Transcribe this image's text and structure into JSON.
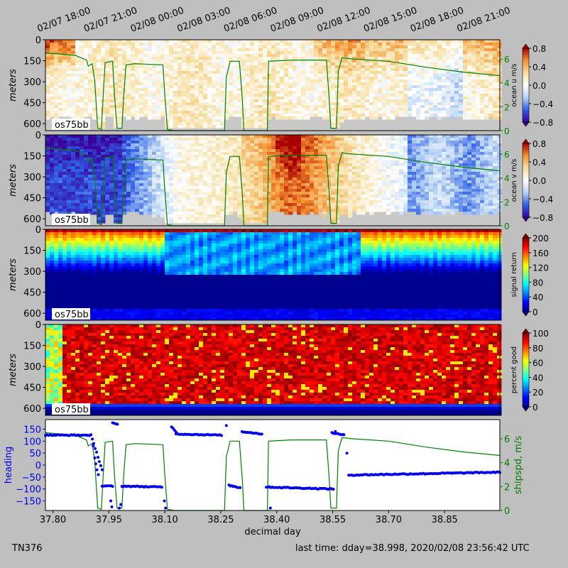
{
  "figure": {
    "bg": "#bfbfbf",
    "footer_left": "TN376",
    "footer_right": "last time: dday=38.998,  2020/02/08 23:56:42 UTC"
  },
  "top_time_ticks": [
    "02/07 18:00",
    "02/07 21:00",
    "02/08 00:00",
    "02/08 03:00",
    "02/08 06:00",
    "02/08 09:00",
    "02/08 12:00",
    "02/08 15:00",
    "02/08 18:00",
    "02/08 21:00"
  ],
  "chart_data": [
    {
      "type": "heatmap",
      "name": "ocean_u",
      "ylabel": "meters",
      "yticks": [
        "0",
        "150",
        "300",
        "450",
        "600"
      ],
      "colorbar_label": "ocean u m/s",
      "colorbar_ticks": [
        "0.8",
        "0.4",
        "0.0",
        "−0.4",
        "−0.8"
      ],
      "colormap": [
        "#3a0098",
        "#2f5fe8",
        "#b8d4f4",
        "#ffffff",
        "#f6dea0",
        "#f59030",
        "#a80000"
      ],
      "clim": [
        -0.8,
        0.8
      ],
      "label": "os75bb",
      "right_axis_ticks": [
        "6",
        "4",
        "2",
        "0"
      ]
    },
    {
      "type": "heatmap",
      "name": "ocean_v",
      "ylabel": "meters",
      "yticks": [
        "0",
        "150",
        "300",
        "450",
        "600"
      ],
      "colorbar_label": "ocean v m/s",
      "colorbar_ticks": [
        "0.8",
        "0.4",
        "0.0",
        "−0.4",
        "−0.8"
      ],
      "colormap": [
        "#3a0098",
        "#2f5fe8",
        "#b8d4f4",
        "#ffffff",
        "#f6dea0",
        "#f59030",
        "#a80000"
      ],
      "clim": [
        -0.8,
        0.8
      ],
      "label": "os75bb",
      "right_axis_ticks": [
        "6",
        "4",
        "2",
        "0"
      ]
    },
    {
      "type": "heatmap",
      "name": "signal_return",
      "ylabel": "meters",
      "yticks": [
        "0",
        "150",
        "300",
        "450",
        "600"
      ],
      "colorbar_label": "signal return",
      "colorbar_ticks": [
        "200",
        "160",
        "120",
        "80",
        "40",
        "0"
      ],
      "colormap": [
        "#00008f",
        "#0000ff",
        "#0080ff",
        "#00ffff",
        "#80ff80",
        "#ffff00",
        "#ff8000",
        "#ff0000",
        "#800000"
      ],
      "clim": [
        0,
        200
      ],
      "label": "os75bb"
    },
    {
      "type": "heatmap",
      "name": "percent_good",
      "ylabel": "meters",
      "yticks": [
        "0",
        "150",
        "300",
        "450",
        "600"
      ],
      "colorbar_label": "percent good",
      "colorbar_ticks": [
        "100",
        "80",
        "60",
        "40",
        "20",
        "0"
      ],
      "colormap": [
        "#00008f",
        "#0000ff",
        "#0080ff",
        "#00ffff",
        "#80ff80",
        "#ffff00",
        "#ff8000",
        "#ff0000",
        "#800000"
      ],
      "clim": [
        0,
        100
      ],
      "label": "os75bb"
    },
    {
      "type": "scatter",
      "name": "heading_and_speed",
      "xlabel": "decimal day",
      "xticks": [
        "37.80",
        "37.95",
        "38.10",
        "38.25",
        "38.40",
        "38.55",
        "38.70",
        "38.85"
      ],
      "xlim": [
        37.78,
        38.998
      ],
      "ylabel": "heading",
      "yticks": [
        "150",
        "100",
        "50",
        "0",
        "−50",
        "−100",
        "−150"
      ],
      "ylim": [
        -190,
        190
      ],
      "ylabel_right": "shipspd, m/s",
      "yticks_right": [
        "6",
        "4",
        "2",
        "0"
      ],
      "ylim_right": [
        0,
        7.6
      ],
      "heading_color": "#0000ee",
      "speed_color": "#008000",
      "heading_segments": [
        {
          "x0": 37.78,
          "x1": 37.902,
          "y0": 125,
          "y1": 125
        },
        {
          "x0": 37.902,
          "x1": 37.932,
          "y0": 125,
          "y1": -20
        },
        {
          "x0": 37.932,
          "x1": 37.96,
          "y0": -88,
          "y1": -88
        },
        {
          "x0": 37.96,
          "x1": 37.973,
          "y0": 175,
          "y1": 170
        },
        {
          "x0": 37.985,
          "x1": 38.092,
          "y0": -88,
          "y1": -92
        },
        {
          "x0": 38.118,
          "x1": 38.13,
          "y0": 160,
          "y1": 140
        },
        {
          "x0": 38.13,
          "x1": 38.252,
          "y0": 130,
          "y1": 125
        },
        {
          "x0": 38.272,
          "x1": 38.302,
          "y0": -85,
          "y1": -95
        },
        {
          "x0": 38.307,
          "x1": 38.36,
          "y0": 140,
          "y1": 130
        },
        {
          "x0": 38.372,
          "x1": 38.552,
          "y0": -92,
          "y1": -100
        },
        {
          "x0": 38.548,
          "x1": 38.58,
          "y0": 135,
          "y1": 125
        },
        {
          "x0": 38.593,
          "x1": 38.998,
          "y0": -42,
          "y1": -30
        }
      ],
      "heading_points": [
        {
          "x": 37.908,
          "y": 80
        },
        {
          "x": 37.912,
          "y": 30
        },
        {
          "x": 37.915,
          "y": 5
        },
        {
          "x": 37.918,
          "y": -20
        },
        {
          "x": 37.922,
          "y": -40
        },
        {
          "x": 37.955,
          "y": -150
        },
        {
          "x": 37.958,
          "y": -175
        },
        {
          "x": 37.978,
          "y": -180
        },
        {
          "x": 37.982,
          "y": -165
        },
        {
          "x": 38.099,
          "y": -150
        },
        {
          "x": 38.102,
          "y": -180
        },
        {
          "x": 38.265,
          "y": 165
        },
        {
          "x": 38.383,
          "y": -180
        },
        {
          "x": 38.557,
          "y": 140
        },
        {
          "x": 38.588,
          "y": 50
        }
      ],
      "speed_series": [
        [
          37.78,
          6.5
        ],
        [
          37.86,
          6.3
        ],
        [
          37.875,
          6.1
        ],
        [
          37.89,
          5.9
        ],
        [
          37.895,
          5.4
        ],
        [
          37.905,
          5.6
        ],
        [
          37.912,
          4.2
        ],
        [
          37.92,
          0.2
        ],
        [
          37.93,
          0.1
        ],
        [
          37.935,
          3.0
        ],
        [
          37.94,
          5.7
        ],
        [
          37.96,
          5.8
        ],
        [
          37.965,
          3.0
        ],
        [
          37.972,
          0.2
        ],
        [
          37.985,
          0.2
        ],
        [
          37.99,
          3.0
        ],
        [
          37.996,
          5.5
        ],
        [
          38.02,
          5.6
        ],
        [
          38.095,
          5.5
        ],
        [
          38.1,
          3.0
        ],
        [
          38.107,
          0.1
        ],
        [
          38.125,
          0.0
        ],
        [
          38.26,
          0.0
        ],
        [
          38.265,
          4.5
        ],
        [
          38.275,
          5.8
        ],
        [
          38.3,
          5.8
        ],
        [
          38.308,
          2.5
        ],
        [
          38.312,
          0.0
        ],
        [
          38.375,
          0.0
        ],
        [
          38.378,
          5.8
        ],
        [
          38.44,
          5.9
        ],
        [
          38.533,
          5.9
        ],
        [
          38.54,
          3.0
        ],
        [
          38.545,
          0.2
        ],
        [
          38.56,
          0.2
        ],
        [
          38.565,
          5.0
        ],
        [
          38.575,
          6.1
        ],
        [
          38.6,
          6.0
        ],
        [
          38.7,
          5.8
        ],
        [
          38.8,
          5.3
        ],
        [
          38.9,
          4.9
        ],
        [
          38.998,
          4.6
        ]
      ]
    }
  ]
}
